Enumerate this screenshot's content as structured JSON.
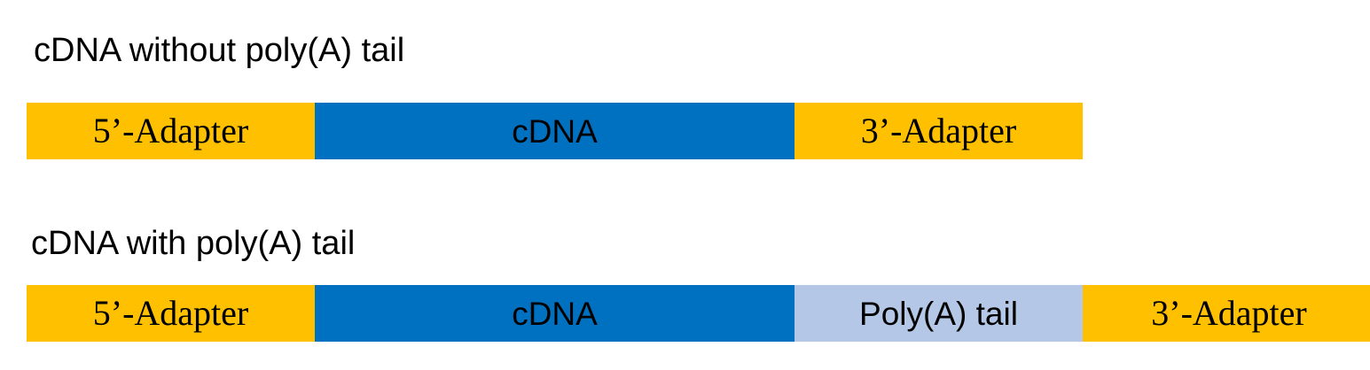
{
  "diagrams": [
    {
      "title": "cDNA without poly(A) tail",
      "segments": [
        {
          "label": "5’-Adapter",
          "kind": "adapter"
        },
        {
          "label": "cDNA",
          "kind": "cdna"
        },
        {
          "label": "3’-Adapter",
          "kind": "adapter"
        }
      ]
    },
    {
      "title": "cDNA with poly(A) tail",
      "segments": [
        {
          "label": "5’-Adapter",
          "kind": "adapter"
        },
        {
          "label": "cDNA",
          "kind": "cdna"
        },
        {
          "label": "Poly(A) tail",
          "kind": "polya"
        },
        {
          "label": "3’-Adapter",
          "kind": "adapter"
        }
      ]
    }
  ],
  "colors": {
    "adapter": "#FFC000",
    "cdna": "#0070C0",
    "polya": "#B4C7E7"
  }
}
